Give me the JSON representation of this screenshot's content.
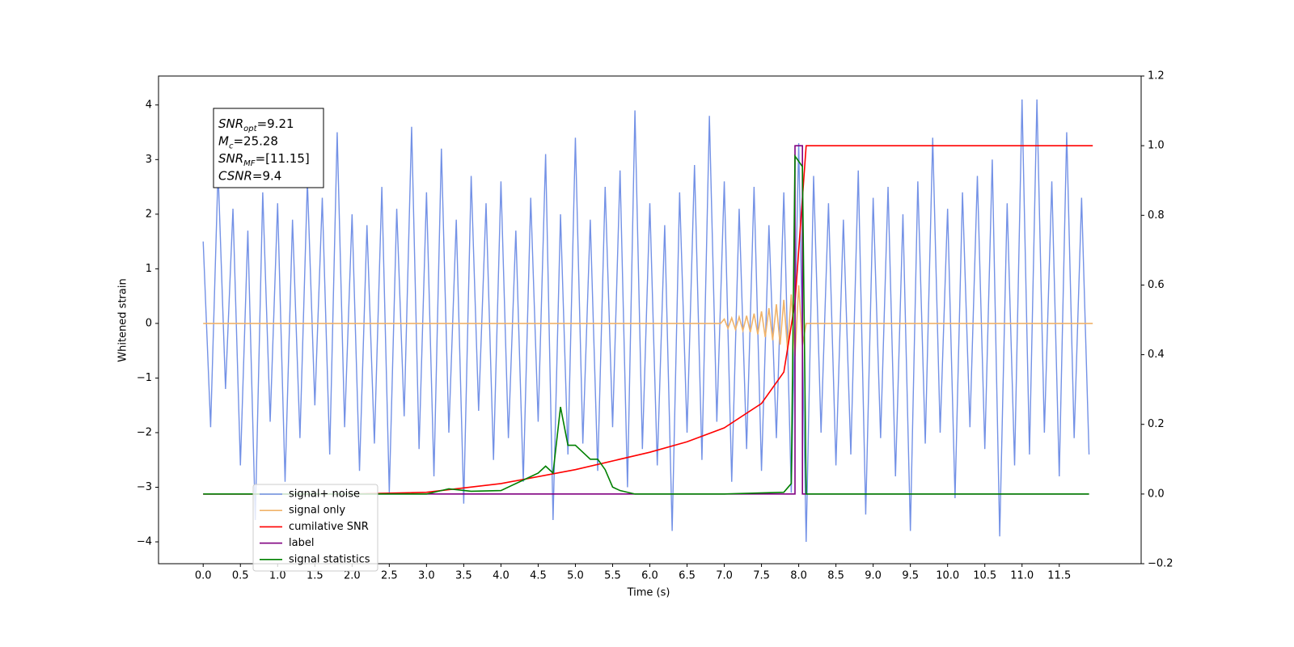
{
  "chart_data": {
    "type": "line",
    "xlabel": "Time (s)",
    "ylabel": "Whitened strain",
    "xlim": [
      -0.6,
      12.6
    ],
    "ylim": [
      -4.4,
      4.53
    ],
    "y2lim": [
      -0.2,
      1.2
    ],
    "xticks": [
      {
        "value": 0,
        "label": "0.0"
      },
      0.5,
      {
        "value": 1,
        "label": "1.0"
      },
      1.5,
      {
        "value": 2,
        "label": "2.0"
      },
      2.5,
      {
        "value": 3,
        "label": "3.0"
      },
      3.5,
      {
        "value": 4,
        "label": "4.0"
      },
      4.5,
      {
        "value": 5,
        "label": "5.0"
      },
      5.5,
      {
        "value": 6,
        "label": "6.0"
      },
      6.5,
      {
        "value": 7,
        "label": "7.0"
      },
      7.5,
      {
        "value": 8,
        "label": "8.0"
      },
      8.5,
      {
        "value": 9,
        "label": "9.0"
      },
      9.5,
      {
        "value": 10,
        "label": "10.0"
      },
      10.5,
      {
        "value": 11,
        "label": "11.0"
      },
      11.5
    ],
    "yticks": [
      {
        "value": -4,
        "label": "−4"
      },
      {
        "value": -3,
        "label": "−3"
      },
      {
        "value": -2,
        "label": "−2"
      },
      {
        "value": -1,
        "label": "−1"
      },
      0,
      1,
      2,
      3,
      4
    ],
    "y2ticks": [
      {
        "value": -0.2,
        "label": "−0.2"
      },
      {
        "value": 0,
        "label": "0.0"
      },
      0.2,
      0.4,
      0.6,
      0.8,
      {
        "value": 1,
        "label": "1.0"
      },
      1.2
    ],
    "legend": "lower left",
    "annotation": [
      {
        "name": "SNR",
        "sub": "opt",
        "text": "=9.21"
      },
      {
        "name": "M",
        "sub": "c",
        "text": "=25.28"
      },
      {
        "name": "SNR",
        "sub": "MF",
        "text": "=[11.15]"
      },
      {
        "name": "CSNR",
        "text": "=9.4"
      }
    ],
    "series": [
      {
        "name": "signal+ noise",
        "color": "#7391e6",
        "x": [
          0,
          0.1,
          0.2,
          0.3,
          0.4,
          0.5,
          0.6,
          0.7,
          0.8,
          0.9,
          1,
          1.1,
          1.2,
          1.3,
          1.4,
          1.5,
          1.6,
          1.7,
          1.8,
          1.9,
          2,
          2.1,
          2.2,
          2.3,
          2.4,
          2.5,
          2.6,
          2.7,
          2.8,
          2.9,
          3,
          3.1,
          3.2,
          3.3,
          3.4,
          3.5,
          3.6,
          3.7,
          3.8,
          3.9,
          4,
          4.1,
          4.2,
          4.3,
          4.4,
          4.5,
          4.6,
          4.7,
          4.8,
          4.9,
          5,
          5.1,
          5.2,
          5.3,
          5.4,
          5.5,
          5.6,
          5.7,
          5.8,
          5.9,
          6,
          6.1,
          6.2,
          6.3,
          6.4,
          6.5,
          6.6,
          6.7,
          6.8,
          6.9,
          7,
          7.1,
          7.2,
          7.3,
          7.4,
          7.5,
          7.6,
          7.7,
          7.8,
          7.9,
          8,
          8.1,
          8.2,
          8.3,
          8.4,
          8.5,
          8.6,
          8.7,
          8.8,
          8.9,
          9,
          9.1,
          9.2,
          9.3,
          9.4,
          9.5,
          9.6,
          9.7,
          9.8,
          9.9,
          10,
          10.1,
          10.2,
          10.3,
          10.4,
          10.5,
          10.6,
          10.7,
          10.8,
          10.9,
          11,
          11.1,
          11.2,
          11.3,
          11.4,
          11.5,
          11.6,
          11.7,
          11.8,
          11.9
        ],
        "values": [
          1.5,
          -1.9,
          2.8,
          -1.2,
          2.1,
          -2.6,
          1.7,
          -3.6,
          2.4,
          -1.8,
          2.2,
          -2.9,
          1.9,
          -2.1,
          2.6,
          -1.5,
          2.3,
          -2.4,
          3.5,
          -1.9,
          2.0,
          -2.7,
          1.8,
          -2.2,
          2.5,
          -3.1,
          2.1,
          -1.7,
          3.6,
          -2.3,
          2.4,
          -2.8,
          3.2,
          -2.0,
          1.9,
          -3.3,
          2.7,
          -1.6,
          2.2,
          -2.5,
          2.6,
          -2.1,
          1.7,
          -2.9,
          2.3,
          -1.8,
          3.1,
          -3.6,
          2.0,
          -2.4,
          3.4,
          -2.2,
          1.9,
          -2.7,
          2.5,
          -1.9,
          2.8,
          -3.0,
          3.9,
          -2.3,
          2.2,
          -2.6,
          1.8,
          -3.8,
          2.4,
          -2.0,
          2.9,
          -2.5,
          3.8,
          -1.8,
          2.6,
          -2.9,
          2.1,
          -2.3,
          2.5,
          -2.7,
          1.8,
          -2.1,
          2.4,
          -3.1,
          3.3,
          -4.0,
          2.7,
          -2.0,
          2.2,
          -2.6,
          1.9,
          -2.4,
          2.8,
          -3.5,
          2.3,
          -2.1,
          2.5,
          -2.8,
          2.0,
          -3.8,
          2.6,
          -2.2,
          3.4,
          -2.0,
          2.1,
          -3.2,
          2.4,
          -1.9,
          2.7,
          -2.3,
          3.0,
          -3.9,
          2.2,
          -2.6,
          4.1,
          -2.4,
          4.1,
          -2.0,
          2.6,
          -2.8,
          3.5,
          -2.1,
          2.3,
          -2.4
        ]
      },
      {
        "name": "signal only",
        "color": "#f0b36a",
        "x": [
          0,
          6.95,
          7,
          7.05,
          7.1,
          7.15,
          7.2,
          7.25,
          7.3,
          7.35,
          7.4,
          7.45,
          7.5,
          7.55,
          7.6,
          7.65,
          7.7,
          7.75,
          7.8,
          7.85,
          7.9,
          7.95,
          8,
          8.05,
          8.1,
          11.95
        ],
        "values": [
          0,
          0,
          0.08,
          -0.09,
          0.1,
          -0.11,
          0.12,
          -0.13,
          0.14,
          -0.16,
          0.18,
          -0.2,
          0.22,
          -0.25,
          0.28,
          -0.31,
          0.35,
          -0.39,
          0.43,
          -0.48,
          0.53,
          -0.6,
          0.7,
          -0.4,
          0,
          0
        ]
      },
      {
        "name": "cumilative SNR",
        "color": "#ff0000",
        "axis": "y2",
        "x": [
          0,
          1,
          2,
          3,
          4,
          5,
          6,
          6.5,
          7,
          7.5,
          7.8,
          7.95,
          8.05,
          8.1,
          11.95
        ],
        "values": [
          0,
          0,
          0,
          0.005,
          0.03,
          0.07,
          0.12,
          0.15,
          0.19,
          0.26,
          0.35,
          0.55,
          0.85,
          1,
          1
        ]
      },
      {
        "name": "label",
        "color": "#800080",
        "axis": "y2",
        "x": [
          0,
          7.95,
          7.95,
          8.05,
          8.05,
          11.9
        ],
        "values": [
          0,
          0,
          1,
          1,
          0,
          0
        ]
      },
      {
        "name": "signal statistics",
        "color": "#008000",
        "axis": "y2",
        "x": [
          0,
          3,
          3.3,
          3.6,
          4,
          4.3,
          4.5,
          4.6,
          4.7,
          4.8,
          4.9,
          5,
          5.1,
          5.2,
          5.3,
          5.4,
          5.5,
          5.6,
          5.8,
          6,
          7,
          7.8,
          7.9,
          7.95,
          8.05,
          8.1,
          11.9
        ],
        "values": [
          0,
          0,
          0.015,
          0.008,
          0.01,
          0.04,
          0.06,
          0.08,
          0.06,
          0.25,
          0.14,
          0.14,
          0.12,
          0.1,
          0.1,
          0.07,
          0.02,
          0.01,
          0,
          0,
          0,
          0.005,
          0.03,
          0.97,
          0.94,
          0,
          0
        ]
      }
    ]
  }
}
